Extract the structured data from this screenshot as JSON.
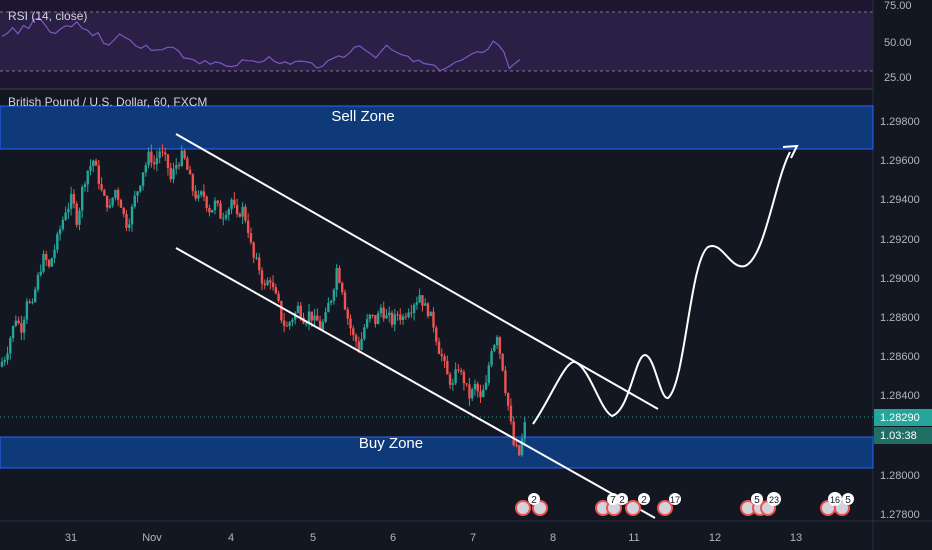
{
  "colors": {
    "background": "#131722",
    "rsi_panel": "#1e1530",
    "rsi_band": "#2a1f45",
    "rsi_line": "#7e57c2",
    "up": "#26a69a",
    "down": "#ef5350",
    "zone_fill": "#0f3a7a",
    "zone_border": "#2962ff",
    "drawing": "#ffffff",
    "price_label": "#26a69a",
    "text": "#b2b5be"
  },
  "rsi": {
    "label": "RSI (14, close)",
    "ticks": [
      "75.00",
      "50.00",
      "25.00"
    ]
  },
  "main": {
    "symbol_title": "British Pound / U.S. Dollar, 60, FXCM",
    "sell_zone_label": "Sell Zone",
    "buy_zone_label": "Buy Zone",
    "price_ticks": [
      "1.29800",
      "1.29600",
      "1.29400",
      "1.29200",
      "1.29000",
      "1.28800",
      "1.28600",
      "1.28400",
      "1.28000",
      "1.27800"
    ],
    "current_price": "1.28290",
    "countdown": "1.03:38"
  },
  "time_axis": {
    "labels": [
      "31",
      "Nov",
      "4",
      "5",
      "6",
      "7",
      "8",
      "11",
      "12",
      "13"
    ]
  },
  "events": {
    "group1": "2",
    "group2a": "7",
    "group2b": "2",
    "group2c": "2",
    "group3": "17",
    "group4a": "5",
    "group4b": "23",
    "group5a": "16",
    "group5b": "5"
  },
  "chart_data": {
    "type": "candlestick",
    "symbol": "British Pound / U.S. Dollar, 60, FXCM",
    "ylim": [
      1.2775,
      1.2998
    ],
    "zones": [
      {
        "name": "Sell Zone",
        "from": 1.2965,
        "to": 1.2987
      },
      {
        "name": "Buy Zone",
        "from": 1.2804,
        "to": 1.282
      }
    ],
    "current_price": 1.2829,
    "close_path": [
      1.286,
      1.287,
      1.288,
      1.2875,
      1.289,
      1.2885,
      1.29,
      1.291,
      1.2905,
      1.2915,
      1.2925,
      1.2935,
      1.294,
      1.293,
      1.2945,
      1.2955,
      1.296,
      1.295,
      1.294,
      1.2935,
      1.2945,
      1.2938,
      1.2928,
      1.2935,
      1.2945,
      1.2955,
      1.2962,
      1.2958,
      1.2965,
      1.296,
      1.295,
      1.2958,
      1.2962,
      1.2955,
      1.2945,
      1.294,
      1.2942,
      1.2935,
      1.2938,
      1.2932,
      1.2935,
      1.294,
      1.293,
      1.2935,
      1.2925,
      1.291,
      1.2905,
      1.2895,
      1.29,
      1.289,
      1.288,
      1.2875,
      1.288,
      1.2885,
      1.288,
      1.2882,
      1.2878,
      1.2875,
      1.288,
      1.289,
      1.2905,
      1.2895,
      1.288,
      1.287,
      1.2865,
      1.2875,
      1.288,
      1.2878,
      1.2885,
      1.288,
      1.2878,
      1.2882,
      1.288,
      1.2885,
      1.2888,
      1.2892,
      1.2885,
      1.288,
      1.287,
      1.286,
      1.285,
      1.2845,
      1.2855,
      1.2848,
      1.284,
      1.2845,
      1.2838,
      1.2845,
      1.2865,
      1.2872,
      1.2855,
      1.2835,
      1.2815,
      1.281,
      1.2825
    ],
    "rsi_path": [
      55,
      58,
      60,
      57,
      63,
      62,
      67,
      70,
      65,
      58,
      55,
      60,
      64,
      62,
      66,
      63,
      58,
      54,
      56,
      50,
      48,
      52,
      55,
      53,
      50,
      47,
      45,
      46,
      44,
      42,
      43,
      45,
      46,
      42,
      38,
      36,
      35,
      33,
      34,
      32,
      31,
      30,
      29,
      30,
      31,
      33,
      35,
      33,
      32,
      34,
      36,
      35,
      33,
      31,
      30,
      32,
      33,
      31,
      30,
      29,
      30,
      32,
      34,
      36,
      38,
      40,
      45,
      48,
      44,
      40,
      38,
      42,
      45,
      43,
      40,
      38,
      36,
      34,
      33,
      31,
      30,
      28,
      27,
      28,
      30,
      32,
      34,
      36,
      38,
      40,
      42,
      45,
      50,
      48,
      40,
      28,
      32,
      36
    ]
  }
}
